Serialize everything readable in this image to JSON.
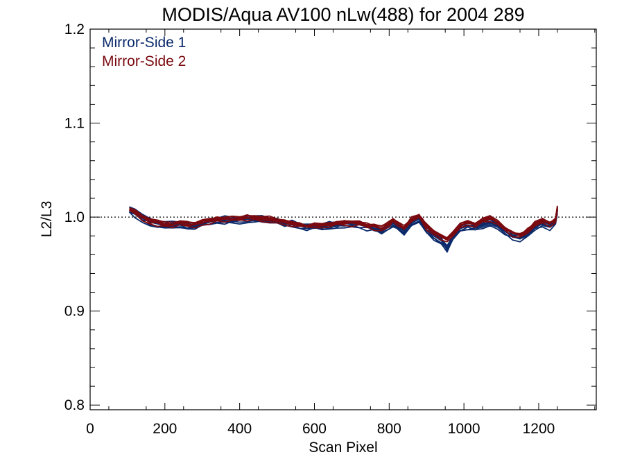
{
  "chart_data": {
    "type": "line",
    "title": "MODIS/Aqua AV100 nLw(488) for 2004 289",
    "xlabel": "Scan Pixel",
    "ylabel": "L2/L3",
    "xlim": [
      0,
      1354
    ],
    "ylim": [
      0.795,
      1.2
    ],
    "x_ticks": [
      0,
      200,
      400,
      600,
      800,
      1000,
      1200
    ],
    "y_ticks": [
      0.8,
      0.9,
      1.0,
      1.1,
      1.2
    ],
    "x_tick_labels": [
      "0",
      "200",
      "400",
      "600",
      "800",
      "1000",
      "1200"
    ],
    "y_tick_labels": [
      "0.8",
      "0.9",
      "1.0",
      "1.1",
      "1.2"
    ],
    "reference_line": {
      "y": 1.0,
      "style": "dotted"
    },
    "legend_position": "top-left",
    "series": [
      {
        "name": "Mirror-Side 1",
        "color": "#0b2a6b",
        "x": [
          105,
          120,
          140,
          160,
          180,
          200,
          220,
          240,
          260,
          280,
          300,
          320,
          340,
          360,
          380,
          400,
          420,
          440,
          460,
          480,
          500,
          520,
          540,
          560,
          580,
          600,
          620,
          640,
          660,
          680,
          700,
          720,
          740,
          760,
          780,
          800,
          810,
          820,
          840,
          860,
          880,
          890,
          900,
          920,
          940,
          955,
          970,
          990,
          1010,
          1030,
          1050,
          1070,
          1090,
          1110,
          1130,
          1150,
          1170,
          1190,
          1210,
          1230,
          1245,
          1250
        ],
        "values": [
          1.007,
          1.004,
          0.999,
          0.995,
          0.993,
          0.991,
          0.991,
          0.993,
          0.991,
          0.99,
          0.993,
          0.995,
          0.997,
          0.997,
          0.997,
          0.997,
          0.998,
          0.998,
          0.997,
          0.997,
          0.995,
          0.993,
          0.993,
          0.991,
          0.99,
          0.99,
          0.99,
          0.991,
          0.992,
          0.993,
          0.993,
          0.992,
          0.99,
          0.988,
          0.985,
          0.99,
          0.994,
          0.991,
          0.985,
          0.994,
          0.998,
          0.993,
          0.986,
          0.98,
          0.975,
          0.966,
          0.978,
          0.988,
          0.991,
          0.989,
          0.992,
          0.995,
          0.99,
          0.985,
          0.98,
          0.978,
          0.983,
          0.989,
          0.993,
          0.99,
          0.995,
          1.008
        ]
      },
      {
        "name": "Mirror-Side 2",
        "color": "#7a0a10",
        "x": [
          105,
          120,
          140,
          160,
          180,
          200,
          220,
          240,
          260,
          280,
          300,
          320,
          340,
          360,
          380,
          400,
          420,
          440,
          460,
          480,
          500,
          520,
          540,
          560,
          580,
          600,
          620,
          640,
          660,
          680,
          700,
          720,
          740,
          760,
          780,
          800,
          810,
          820,
          840,
          860,
          880,
          890,
          900,
          920,
          940,
          955,
          970,
          990,
          1010,
          1030,
          1050,
          1070,
          1090,
          1110,
          1130,
          1150,
          1170,
          1190,
          1210,
          1230,
          1245,
          1250
        ],
        "values": [
          1.008,
          1.005,
          1.0,
          0.996,
          0.994,
          0.992,
          0.992,
          0.994,
          0.992,
          0.992,
          0.994,
          0.996,
          0.998,
          0.998,
          0.998,
          0.998,
          0.999,
          0.999,
          0.998,
          0.998,
          0.996,
          0.994,
          0.994,
          0.992,
          0.991,
          0.991,
          0.991,
          0.992,
          0.993,
          0.994,
          0.994,
          0.993,
          0.991,
          0.99,
          0.988,
          0.993,
          0.997,
          0.994,
          0.988,
          0.997,
          1.001,
          0.996,
          0.99,
          0.984,
          0.979,
          0.976,
          0.982,
          0.991,
          0.994,
          0.992,
          0.996,
          0.999,
          0.994,
          0.988,
          0.983,
          0.981,
          0.986,
          0.992,
          0.996,
          0.993,
          0.997,
          1.01
        ]
      }
    ]
  }
}
